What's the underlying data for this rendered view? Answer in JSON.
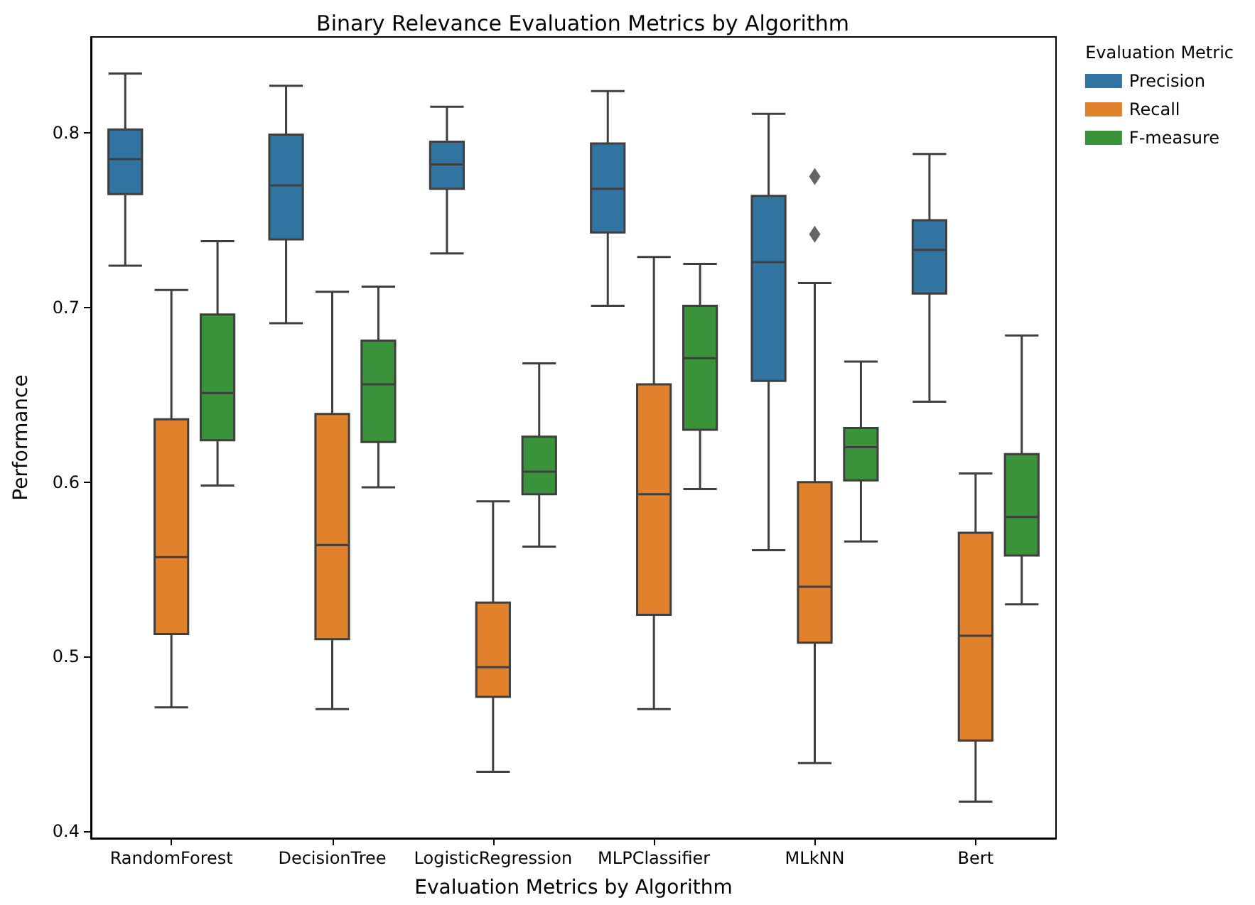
{
  "chart_data": {
    "type": "box",
    "title": "Binary Relevance Evaluation Metrics by Algorithm",
    "xlabel": "Evaluation Metrics by Algorithm",
    "ylabel": "Performance",
    "legend_title": "Evaluation Metric",
    "legend": "top right",
    "grid": false,
    "categories": [
      "RandomForest",
      "DecisionTree",
      "LogisticRegression",
      "MLPClassifier",
      "MLkNN",
      "Bert"
    ],
    "ylim": [
      0.396,
      0.855
    ],
    "yticks": [
      0.4,
      0.5,
      0.6,
      0.7,
      0.8
    ],
    "series": [
      {
        "name": "Precision",
        "color": "#3274a1",
        "boxes": [
          {
            "low": 0.724,
            "q1": 0.765,
            "median": 0.785,
            "q3": 0.802,
            "high": 0.834
          },
          {
            "low": 0.691,
            "q1": 0.739,
            "median": 0.77,
            "q3": 0.799,
            "high": 0.827
          },
          {
            "low": 0.731,
            "q1": 0.768,
            "median": 0.782,
            "q3": 0.795,
            "high": 0.815
          },
          {
            "low": 0.701,
            "q1": 0.743,
            "median": 0.768,
            "q3": 0.794,
            "high": 0.824
          },
          {
            "low": 0.561,
            "q1": 0.658,
            "median": 0.726,
            "q3": 0.764,
            "high": 0.811
          },
          {
            "low": 0.646,
            "q1": 0.708,
            "median": 0.733,
            "q3": 0.75,
            "high": 0.788
          }
        ]
      },
      {
        "name": "Recall",
        "color": "#e1812c",
        "boxes": [
          {
            "low": 0.471,
            "q1": 0.513,
            "median": 0.557,
            "q3": 0.636,
            "high": 0.71
          },
          {
            "low": 0.47,
            "q1": 0.51,
            "median": 0.564,
            "q3": 0.639,
            "high": 0.709
          },
          {
            "low": 0.434,
            "q1": 0.477,
            "median": 0.494,
            "q3": 0.531,
            "high": 0.589
          },
          {
            "low": 0.47,
            "q1": 0.524,
            "median": 0.593,
            "q3": 0.656,
            "high": 0.729
          },
          {
            "low": 0.439,
            "q1": 0.508,
            "median": 0.54,
            "q3": 0.6,
            "high": 0.714,
            "outliers": [
              0.775,
              0.742
            ]
          },
          {
            "low": 0.417,
            "q1": 0.452,
            "median": 0.512,
            "q3": 0.571,
            "high": 0.605
          }
        ]
      },
      {
        "name": "F-measure",
        "color": "#3a923a",
        "boxes": [
          {
            "low": 0.598,
            "q1": 0.624,
            "median": 0.651,
            "q3": 0.696,
            "high": 0.738
          },
          {
            "low": 0.597,
            "q1": 0.623,
            "median": 0.656,
            "q3": 0.681,
            "high": 0.712
          },
          {
            "low": 0.563,
            "q1": 0.593,
            "median": 0.606,
            "q3": 0.626,
            "high": 0.668
          },
          {
            "low": 0.596,
            "q1": 0.63,
            "median": 0.671,
            "q3": 0.701,
            "high": 0.725
          },
          {
            "low": 0.566,
            "q1": 0.601,
            "median": 0.62,
            "q3": 0.631,
            "high": 0.669
          },
          {
            "low": 0.53,
            "q1": 0.558,
            "median": 0.58,
            "q3": 0.616,
            "high": 0.684
          }
        ]
      }
    ]
  }
}
